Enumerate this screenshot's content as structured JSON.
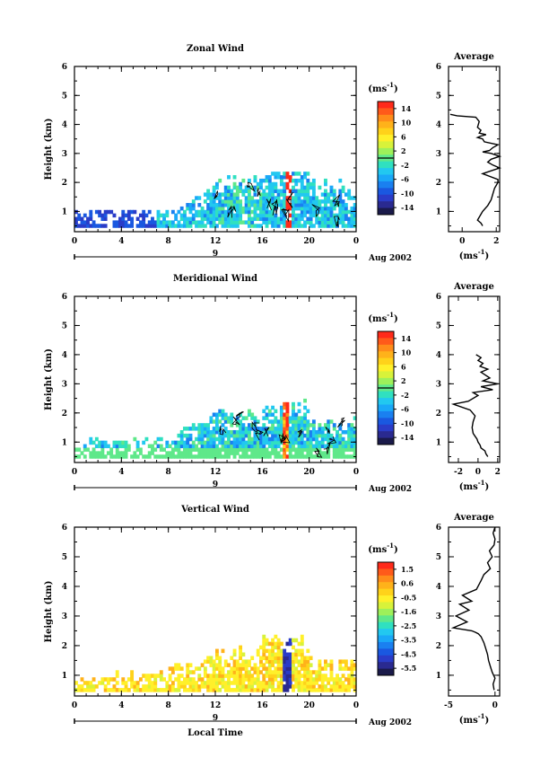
{
  "chart_data": [
    {
      "type": "heatmap",
      "title": "Zonal Wind",
      "ylabel": "Height (km)",
      "xlabel": "",
      "xticks": [
        "0",
        "4",
        "8",
        "12",
        "16",
        "20",
        "0"
      ],
      "yticks": [
        "1",
        "2",
        "3",
        "4",
        "5",
        "6"
      ],
      "xlim": [
        0,
        24
      ],
      "ylim": [
        0.3,
        6
      ],
      "day_label": "9",
      "date_label": "Aug 2002",
      "colorbar": {
        "unit": "(ms",
        "unit_sup": "-1",
        "unit_close": ")",
        "labels": [
          "14",
          "10",
          "6",
          "2",
          "-2",
          "-6",
          "-10",
          "-14"
        ],
        "zero_line_fraction": 0.5,
        "colors": [
          "#ff2a1a",
          "#ff5a1a",
          "#ff8c1a",
          "#ffb21a",
          "#ffd21a",
          "#fff02a",
          "#d8f23a",
          "#9ef05a",
          "#5fe88a",
          "#30e0c0",
          "#22c8f0",
          "#1aa8f8",
          "#1a80f0",
          "#1a58e0",
          "#2a3cc8",
          "#2a2a90",
          "#1a1a4a"
        ]
      },
      "average": {
        "title": "Average",
        "xlabel": "(ms",
        "xlabel_sup": "-1",
        "xlabel_close": ")",
        "xticks": [
          "0",
          "2"
        ],
        "xlim": [
          -0.8,
          2.2
        ],
        "profile_x": [
          1.2,
          1.1,
          0.9,
          1.0,
          1.2,
          1.5,
          1.7,
          1.8,
          1.9,
          2.0,
          2.1,
          2.1,
          1.2,
          1.7,
          2.2,
          1.8,
          1.5,
          1.7,
          2.2,
          1.7,
          1.2,
          1.6,
          1.8,
          2.1,
          1.3,
          1.2,
          0.9,
          1.1,
          1.4,
          1.0,
          1.1,
          0.9,
          1.0,
          0.8,
          -0.3,
          -0.7
        ],
        "profile_y": [
          0.5,
          0.6,
          0.7,
          0.8,
          1.0,
          1.2,
          1.4,
          1.6,
          1.8,
          1.9,
          2.0,
          2.1,
          2.3,
          2.4,
          2.5,
          2.6,
          2.7,
          2.8,
          2.9,
          3.0,
          3.05,
          3.1,
          3.2,
          3.3,
          3.4,
          3.5,
          3.55,
          3.6,
          3.65,
          3.7,
          3.8,
          3.9,
          4.1,
          4.25,
          4.3,
          4.35
        ]
      }
    },
    {
      "type": "heatmap",
      "title": "Meridional Wind",
      "ylabel": "Height (km)",
      "xlabel": "",
      "xticks": [
        "0",
        "4",
        "8",
        "12",
        "16",
        "20",
        "0"
      ],
      "yticks": [
        "1",
        "2",
        "3",
        "4",
        "5",
        "6"
      ],
      "xlim": [
        0,
        24
      ],
      "ylim": [
        0.3,
        6
      ],
      "day_label": "9",
      "date_label": "Aug 2002",
      "colorbar": {
        "unit": "(ms",
        "unit_sup": "-1",
        "unit_close": ")",
        "labels": [
          "14",
          "10",
          "6",
          "2",
          "-2",
          "-6",
          "-10",
          "-14"
        ],
        "zero_line_fraction": 0.5,
        "colors": [
          "#ff2a1a",
          "#ff5a1a",
          "#ff8c1a",
          "#ffb21a",
          "#ffd21a",
          "#fff02a",
          "#d8f23a",
          "#9ef05a",
          "#5fe88a",
          "#30e0c0",
          "#22c8f0",
          "#1aa8f8",
          "#1a80f0",
          "#1a58e0",
          "#2a3cc8",
          "#2a2a90",
          "#1a1a4a"
        ]
      },
      "average": {
        "title": "Average",
        "xlabel": "(ms",
        "xlabel_sup": "-1",
        "xlabel_close": ")",
        "xticks": [
          "-2",
          "0",
          "2"
        ],
        "xlim": [
          -3,
          2.2
        ],
        "profile_x": [
          1.0,
          0.8,
          0.7,
          0.3,
          0.2,
          0.0,
          -0.1,
          -0.3,
          -0.5,
          -0.6,
          -0.5,
          -0.3,
          -0.8,
          -2.5,
          -1.0,
          0.0,
          -0.5,
          1.5,
          0.3,
          2.0,
          0.5,
          1.2,
          0.3,
          1.0,
          0.2,
          0.5,
          0.0,
          0.3,
          -0.2
        ],
        "profile_y": [
          0.5,
          0.6,
          0.7,
          0.8,
          0.9,
          1.0,
          1.1,
          1.2,
          1.3,
          1.5,
          1.7,
          1.9,
          2.1,
          2.3,
          2.4,
          2.6,
          2.7,
          2.8,
          2.9,
          3.0,
          3.1,
          3.2,
          3.4,
          3.5,
          3.6,
          3.7,
          3.8,
          3.9,
          4.0
        ]
      }
    },
    {
      "type": "heatmap",
      "title": "Vertical Wind",
      "ylabel": "Height (km)",
      "xlabel": "Local Time",
      "xticks": [
        "0",
        "4",
        "8",
        "12",
        "16",
        "20",
        "0"
      ],
      "yticks": [
        "1",
        "2",
        "3",
        "4",
        "5",
        "6"
      ],
      "xlim": [
        0,
        24
      ],
      "ylim": [
        0.3,
        6
      ],
      "day_label": "9",
      "date_label": "Aug 2002",
      "colorbar": {
        "unit": "(ms",
        "unit_sup": "-1",
        "unit_close": ")",
        "labels": [
          "1.5",
          "0.6",
          "-0.5",
          "-1.6",
          "-2.5",
          "-3.5",
          "-4.5",
          "-5.5"
        ],
        "zero_line_fraction": null,
        "colors": [
          "#ff2a1a",
          "#ff5a1a",
          "#ff8c1a",
          "#ffb21a",
          "#ffd21a",
          "#fff02a",
          "#d8f23a",
          "#9ef05a",
          "#5fe88a",
          "#30e0c0",
          "#22c8f0",
          "#1aa8f8",
          "#1a80f0",
          "#1a58e0",
          "#2a3cc8",
          "#2a2a90",
          "#1a1a4a"
        ]
      },
      "average": {
        "title": "Average",
        "xlabel": "(ms",
        "xlabel_sup": "-1",
        "xlabel_close": ")",
        "xticks": [
          "-5",
          "0"
        ],
        "xlim": [
          -5,
          0.5
        ],
        "profile_x": [
          -0.1,
          -0.2,
          0.0,
          -0.3,
          -0.5,
          -0.7,
          -0.8,
          -1.0,
          -1.2,
          -1.5,
          -1.8,
          -2.1,
          -2.5,
          -4.5,
          -3.0,
          -4.2,
          -2.8,
          -3.8,
          -2.5,
          -3.5,
          -2.0,
          -1.5,
          -1.2,
          -0.5,
          -0.8,
          -0.3,
          -0.6,
          -0.1,
          0.0,
          -0.2,
          0.0
        ],
        "profile_y": [
          0.5,
          0.7,
          0.9,
          1.1,
          1.3,
          1.5,
          1.7,
          1.9,
          2.1,
          2.3,
          2.4,
          2.45,
          2.5,
          2.6,
          2.8,
          3.0,
          3.2,
          3.4,
          3.5,
          3.7,
          3.9,
          4.2,
          4.4,
          4.6,
          4.8,
          5.0,
          5.2,
          5.4,
          5.6,
          5.8,
          6.0
        ]
      }
    }
  ]
}
